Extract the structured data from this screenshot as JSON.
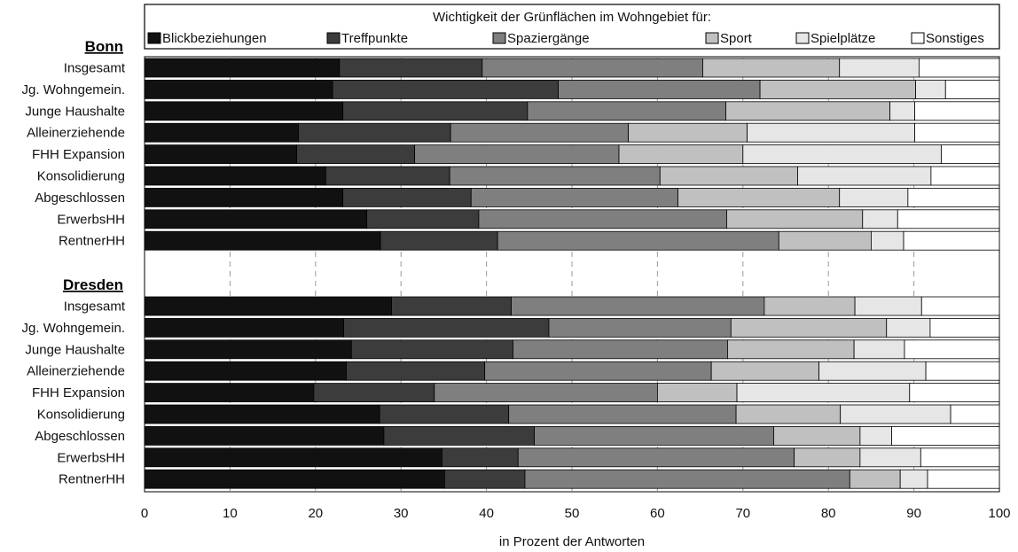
{
  "chart_data": {
    "type": "bar",
    "orientation": "horizontal",
    "stacked": true,
    "title": "Wichtigkeit der Grünflächen im Wohngebiet für:",
    "xlabel": "in Prozent der Antworten",
    "ylabel": "",
    "xlim": [
      0,
      100
    ],
    "xticks": [
      0,
      10,
      20,
      30,
      40,
      50,
      60,
      70,
      80,
      90,
      100
    ],
    "grid": "vertical dashed lines",
    "legend_position": "top",
    "series": [
      {
        "name": "Blickbeziehungen",
        "color": "#111111"
      },
      {
        "name": "Treffpunkte",
        "color": "#3c3c3c"
      },
      {
        "name": "Spaziergänge",
        "color": "#7f7f7f"
      },
      {
        "name": "Sport",
        "color": "#c0c0c0"
      },
      {
        "name": "Spielplätze",
        "color": "#e6e6e6"
      },
      {
        "name": "Sonstiges",
        "color": "#ffffff"
      }
    ],
    "groups": [
      {
        "name": "Bonn",
        "categories": [
          "Insgesamt",
          "Jg. Wohngemein.",
          "Junge Haushalte",
          "Alleinerziehende",
          "FHH Expansion",
          "Konsolidierung",
          "Abgeschlossen",
          "ErwerbsHH",
          "RentnerHH"
        ],
        "values": [
          [
            22.8,
            16.7,
            25.8,
            16.0,
            9.3,
            9.4
          ],
          [
            22.0,
            26.4,
            23.6,
            18.2,
            3.5,
            6.3
          ],
          [
            23.2,
            21.6,
            23.2,
            19.2,
            2.9,
            9.9
          ],
          [
            18.0,
            17.8,
            20.8,
            13.9,
            19.6,
            9.9
          ],
          [
            17.8,
            13.8,
            23.9,
            14.5,
            23.2,
            6.8
          ],
          [
            21.2,
            14.5,
            24.6,
            16.1,
            15.6,
            8.0
          ],
          [
            23.2,
            15.0,
            24.2,
            18.9,
            8.0,
            10.7
          ],
          [
            26.0,
            13.1,
            29.0,
            15.9,
            4.1,
            11.9
          ],
          [
            27.6,
            13.7,
            32.9,
            10.8,
            3.8,
            11.2
          ]
        ]
      },
      {
        "name": "Dresden",
        "categories": [
          "Insgesamt",
          "Jg. Wohngemein.",
          "Junge Haushalte",
          "Alleinerziehende",
          "FHH Expansion",
          "Konsolidierung",
          "Abgeschlossen",
          "ErwerbsHH",
          "RentnerHH"
        ],
        "values": [
          [
            28.9,
            14.0,
            29.6,
            10.6,
            7.8,
            9.1
          ],
          [
            23.3,
            24.0,
            21.3,
            18.2,
            5.1,
            8.1
          ],
          [
            24.2,
            18.9,
            25.1,
            14.8,
            5.9,
            11.1
          ],
          [
            23.6,
            16.2,
            26.5,
            12.6,
            12.5,
            8.6
          ],
          [
            19.8,
            14.1,
            26.1,
            9.3,
            20.2,
            10.5
          ],
          [
            27.5,
            15.1,
            26.6,
            12.2,
            12.9,
            5.7
          ],
          [
            28.0,
            17.6,
            28.0,
            10.1,
            3.7,
            12.6
          ],
          [
            34.8,
            8.9,
            32.3,
            7.7,
            7.1,
            9.2
          ],
          [
            35.1,
            9.4,
            38.0,
            5.9,
            3.2,
            8.4
          ]
        ]
      }
    ]
  }
}
